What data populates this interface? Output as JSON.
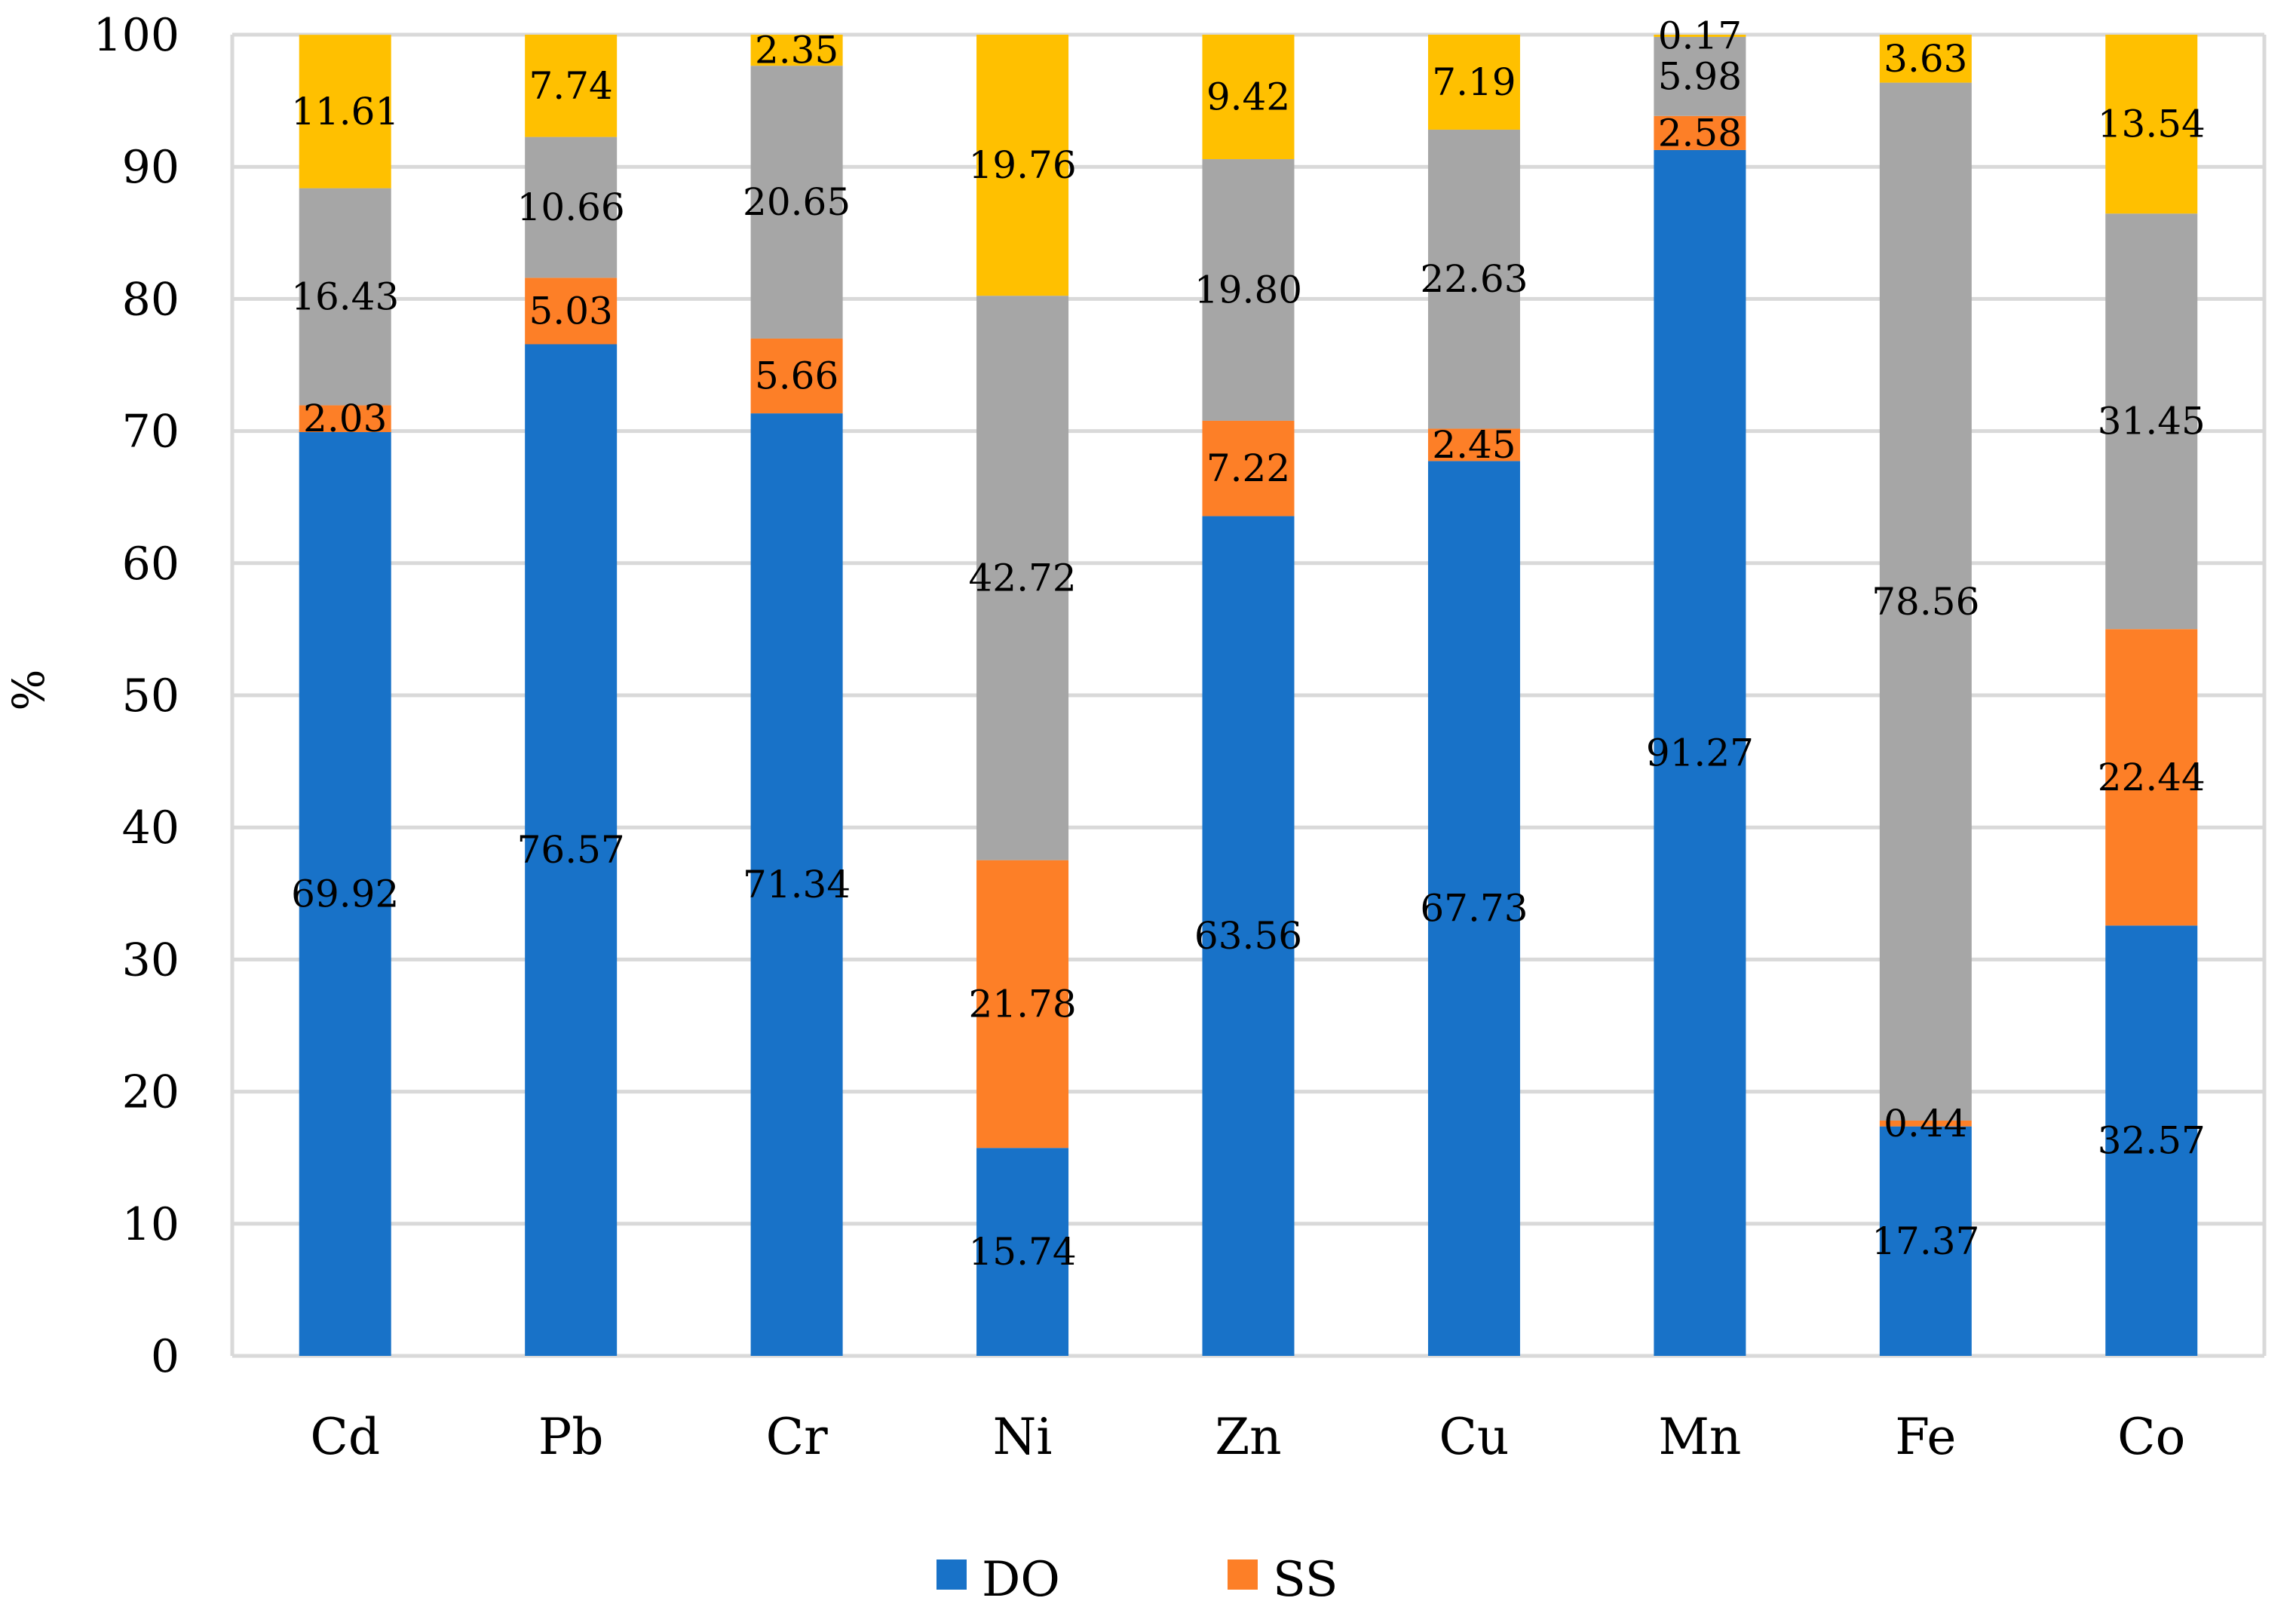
{
  "chart_data": {
    "type": "bar",
    "stacked": true,
    "categories": [
      "Cd",
      "Pb",
      "Cr",
      "Ni",
      "Zn",
      "Cu",
      "Mn",
      "Fe",
      "Co"
    ],
    "series": [
      {
        "name": "DO",
        "color": "#1872c8",
        "values": [
          69.92,
          76.57,
          71.34,
          15.74,
          63.56,
          67.73,
          91.27,
          17.37,
          32.57
        ]
      },
      {
        "name": "SS",
        "color": "#fd7f27",
        "values": [
          2.03,
          5.03,
          5.66,
          21.78,
          7.22,
          2.45,
          2.58,
          0.44,
          22.44
        ]
      },
      {
        "color": "#a6a6a6",
        "values": [
          16.43,
          10.66,
          20.65,
          42.72,
          19.8,
          22.63,
          5.98,
          78.56,
          31.45
        ]
      },
      {
        "color": "#ffc000",
        "values": [
          11.61,
          7.74,
          2.35,
          19.76,
          9.42,
          7.19,
          0.17,
          3.63,
          13.54
        ]
      }
    ],
    "data_labels": [
      [
        "69.92",
        "76.57",
        "71.34",
        "15.74",
        "63.56",
        "67.73",
        "91.27",
        "17.37",
        "32.57"
      ],
      [
        "2.03",
        "5.03",
        "5.66",
        "21.78",
        "7.22",
        "2.45",
        "2.58",
        "0.44",
        "22.44"
      ],
      [
        "16.43",
        "10.66",
        "20.65",
        "42.72",
        "19.80",
        "22.63",
        "5.98",
        "78.56",
        "31.45"
      ],
      [
        "11.61",
        "7.74",
        "2.35",
        "19.76",
        "9.42",
        "7.19",
        "0.17",
        "3.63",
        "13.54"
      ]
    ],
    "ylabel": "%",
    "ylim": [
      0,
      100
    ],
    "yticks": [
      0,
      10,
      20,
      30,
      40,
      50,
      60,
      70,
      80,
      90,
      100
    ],
    "grid": true,
    "legend": {
      "position": "bottom",
      "entries": [
        "DO",
        "SS"
      ]
    }
  }
}
